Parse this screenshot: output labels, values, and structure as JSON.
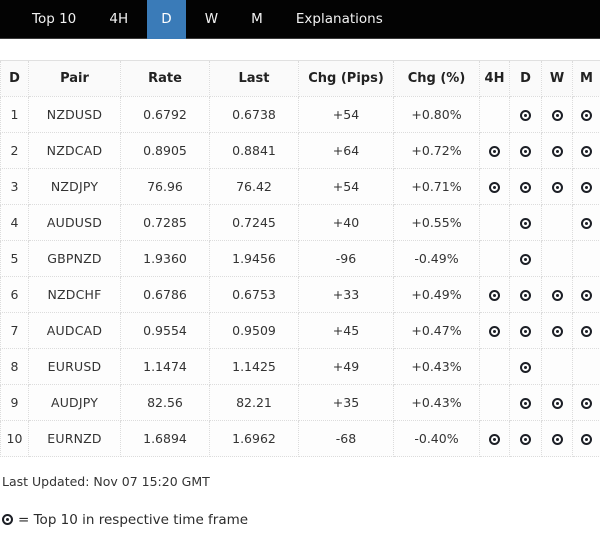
{
  "nav": {
    "tabs": [
      {
        "label": "Top 10",
        "active": false
      },
      {
        "label": "4H",
        "active": false
      },
      {
        "label": "D",
        "active": true
      },
      {
        "label": "W",
        "active": false
      },
      {
        "label": "M",
        "active": false
      },
      {
        "label": "Explanations",
        "active": false
      }
    ]
  },
  "table": {
    "columns": [
      "D",
      "Pair",
      "Rate",
      "Last",
      "Chg (Pips)",
      "Chg (%)",
      "4H",
      "D",
      "W",
      "M"
    ],
    "rows": [
      {
        "rank": "1",
        "pair": "NZDUSD",
        "rate": "0.6792",
        "last": "0.6738",
        "chg_pips": "+54",
        "chg_pct": "+0.80%",
        "tf_4h": false,
        "tf_d": true,
        "tf_w": true,
        "tf_m": true
      },
      {
        "rank": "2",
        "pair": "NZDCAD",
        "rate": "0.8905",
        "last": "0.8841",
        "chg_pips": "+64",
        "chg_pct": "+0.72%",
        "tf_4h": true,
        "tf_d": true,
        "tf_w": true,
        "tf_m": true
      },
      {
        "rank": "3",
        "pair": "NZDJPY",
        "rate": "76.96",
        "last": "76.42",
        "chg_pips": "+54",
        "chg_pct": "+0.71%",
        "tf_4h": true,
        "tf_d": true,
        "tf_w": true,
        "tf_m": true
      },
      {
        "rank": "4",
        "pair": "AUDUSD",
        "rate": "0.7285",
        "last": "0.7245",
        "chg_pips": "+40",
        "chg_pct": "+0.55%",
        "tf_4h": false,
        "tf_d": true,
        "tf_w": false,
        "tf_m": true
      },
      {
        "rank": "5",
        "pair": "GBPNZD",
        "rate": "1.9360",
        "last": "1.9456",
        "chg_pips": "-96",
        "chg_pct": "-0.49%",
        "tf_4h": false,
        "tf_d": true,
        "tf_w": false,
        "tf_m": false
      },
      {
        "rank": "6",
        "pair": "NZDCHF",
        "rate": "0.6786",
        "last": "0.6753",
        "chg_pips": "+33",
        "chg_pct": "+0.49%",
        "tf_4h": true,
        "tf_d": true,
        "tf_w": true,
        "tf_m": true
      },
      {
        "rank": "7",
        "pair": "AUDCAD",
        "rate": "0.9554",
        "last": "0.9509",
        "chg_pips": "+45",
        "chg_pct": "+0.47%",
        "tf_4h": true,
        "tf_d": true,
        "tf_w": true,
        "tf_m": true
      },
      {
        "rank": "8",
        "pair": "EURUSD",
        "rate": "1.1474",
        "last": "1.1425",
        "chg_pips": "+49",
        "chg_pct": "+0.43%",
        "tf_4h": false,
        "tf_d": true,
        "tf_w": false,
        "tf_m": false
      },
      {
        "rank": "9",
        "pair": "AUDJPY",
        "rate": "82.56",
        "last": "82.21",
        "chg_pips": "+35",
        "chg_pct": "+0.43%",
        "tf_4h": false,
        "tf_d": true,
        "tf_w": true,
        "tf_m": true
      },
      {
        "rank": "10",
        "pair": "EURNZD",
        "rate": "1.6894",
        "last": "1.6962",
        "chg_pips": "-68",
        "chg_pct": "-0.40%",
        "tf_4h": true,
        "tf_d": true,
        "tf_w": true,
        "tf_m": true
      }
    ]
  },
  "footer": {
    "last_updated": "Last Updated: Nov 07 15:20 GMT",
    "legend_text": "= Top 10 in respective time frame"
  },
  "colors": {
    "nav_bg": "#030303",
    "accent_active_tab": "#3a7bb8",
    "marker": "#1c1f26",
    "text": "#333333"
  }
}
